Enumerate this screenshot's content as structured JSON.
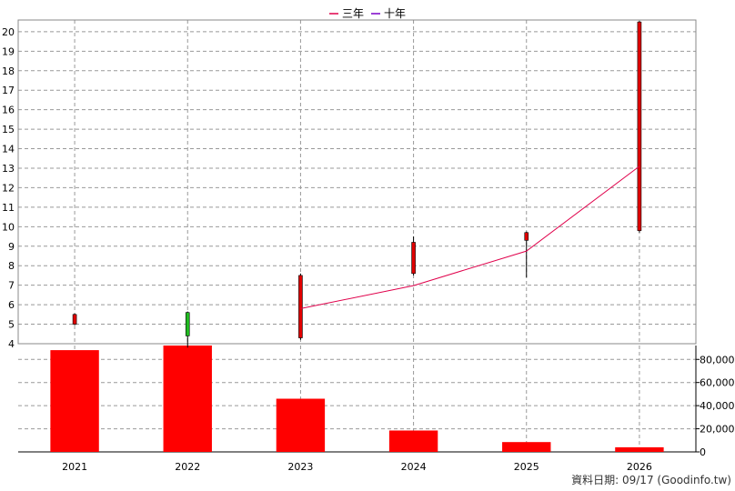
{
  "chart_data": {
    "type": "candlestick+bar",
    "legend": {
      "placement": "top-center",
      "entries": [
        {
          "name": "三年",
          "color": "#e0004b"
        },
        {
          "name": "十年",
          "color": "#7a00c8"
        }
      ]
    },
    "categories": [
      "2021",
      "2022",
      "2023",
      "2024",
      "2025",
      "2026"
    ],
    "price": {
      "ylim": [
        4,
        20.6
      ],
      "yticks": [
        "4",
        "5",
        "6",
        "7",
        "8",
        "9",
        "10",
        "11",
        "12",
        "13",
        "14",
        "15",
        "16",
        "17",
        "18",
        "19",
        "20"
      ],
      "candles": [
        {
          "x": "2021",
          "open": 5.5,
          "close": 5.0,
          "high": 5.55,
          "low": 4.95,
          "color": "#e00000"
        },
        {
          "x": "2022",
          "open": 4.4,
          "close": 5.6,
          "high": 5.65,
          "low": 3.8,
          "color": "#22bb22"
        },
        {
          "x": "2023",
          "open": 7.5,
          "close": 4.3,
          "high": 7.6,
          "low": 4.2,
          "color": "#e00000"
        },
        {
          "x": "2024",
          "open": 9.2,
          "close": 7.6,
          "high": 9.5,
          "low": 7.5,
          "color": "#e00000"
        },
        {
          "x": "2025",
          "open": 9.7,
          "close": 9.3,
          "high": 9.75,
          "low": 7.4,
          "color": "#e00000"
        },
        {
          "x": "2026",
          "open": 20.5,
          "close": 9.8,
          "high": 20.55,
          "low": 9.7,
          "color": "#e00000"
        }
      ],
      "series": [
        {
          "name": "三年",
          "color": "#e0004b",
          "points": [
            {
              "x": "2023",
              "y": 5.8
            },
            {
              "x": "2024",
              "y": 6.98
            },
            {
              "x": "2025",
              "y": 8.75
            },
            {
              "x": "2026",
              "y": 13.1
            }
          ]
        }
      ]
    },
    "volume": {
      "ylim": [
        0,
        92000
      ],
      "yticks": [
        "0",
        "20,000",
        "40,000",
        "60,000",
        "80,000"
      ],
      "ytick_values": [
        0,
        20000,
        40000,
        60000,
        80000
      ],
      "bar_color": "#ff0000",
      "values": [
        88000,
        92000,
        46000,
        18500,
        8500,
        4000
      ]
    },
    "grid": true,
    "source_label": "資料日期: 09/17  (Goodinfo.tw)"
  }
}
